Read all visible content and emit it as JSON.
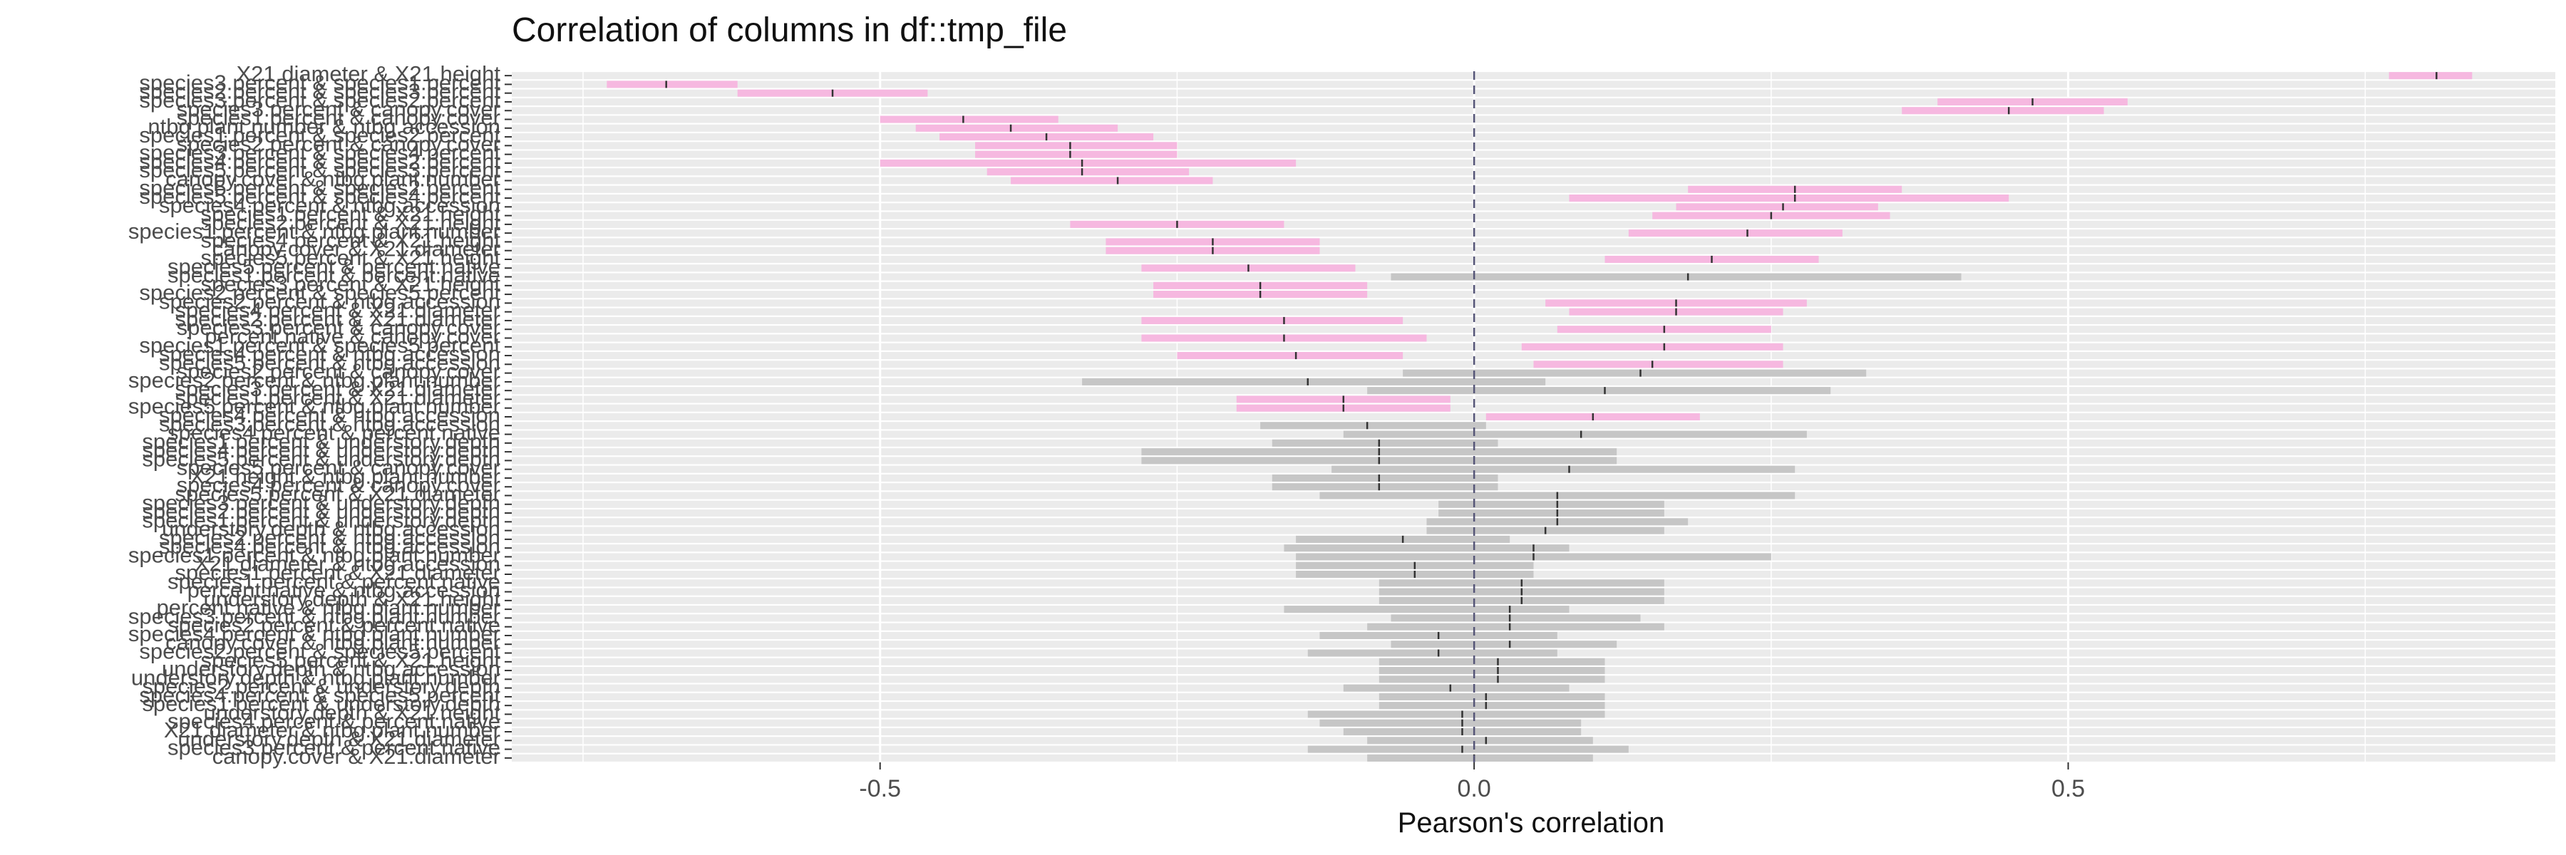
{
  "colors": {
    "panel_grid": "#ebebeb",
    "significant_bar": "#f6b8e0",
    "nonsignificant_bar": "#c6c6c6",
    "estimate_tick": "#333333",
    "zero_line": "#555577",
    "text": "#222222",
    "axis_text": "#4d4d4d"
  },
  "chart_data": {
    "type": "bar",
    "orientation": "horizontal",
    "title": "Correlation of columns in df::tmp_file",
    "xlabel": "Pearson's correlation",
    "ylabel": "",
    "xlim": [
      -0.81,
      0.91
    ],
    "xticks": [
      -0.5,
      0,
      0.5
    ],
    "xtick_labels": [
      "-0.5",
      "0.0",
      "0.5"
    ],
    "grid": true,
    "legend": "none",
    "bars": [
      {
        "label": "X21.diameter & X21.height",
        "r": 0.81,
        "lo": 0.77,
        "hi": 0.84,
        "sig": true
      },
      {
        "label": "species3.percent & species1.percent",
        "r": -0.68,
        "lo": -0.73,
        "hi": -0.62,
        "sig": true
      },
      {
        "label": "species2.percent & species3.percent",
        "r": -0.54,
        "lo": -0.62,
        "hi": -0.46,
        "sig": true
      },
      {
        "label": "species3.percent & species2.percent",
        "r": 0.47,
        "lo": 0.39,
        "hi": 0.55,
        "sig": true
      },
      {
        "label": "species3.percent & canopy.cover",
        "r": 0.45,
        "lo": 0.36,
        "hi": 0.53,
        "sig": true
      },
      {
        "label": "species1.percent & canopy.cover",
        "r": -0.43,
        "lo": -0.5,
        "hi": -0.35,
        "sig": true
      },
      {
        "label": "ntbg.plant.number & ntbg.accession",
        "r": -0.39,
        "lo": -0.47,
        "hi": -0.3,
        "sig": true
      },
      {
        "label": "species1.percent & species2.percent",
        "r": -0.36,
        "lo": -0.45,
        "hi": -0.27,
        "sig": true
      },
      {
        "label": "species2.percent & canopy.cover",
        "r": -0.34,
        "lo": -0.42,
        "hi": -0.25,
        "sig": true
      },
      {
        "label": "species3.percent & species4.percent",
        "r": -0.34,
        "lo": -0.42,
        "hi": -0.25,
        "sig": true
      },
      {
        "label": "species4.percent & species2.percent",
        "r": -0.33,
        "lo": -0.5,
        "hi": -0.15,
        "sig": true
      },
      {
        "label": "species5.percent & species3.percent",
        "r": -0.33,
        "lo": -0.41,
        "hi": -0.24,
        "sig": true
      },
      {
        "label": "canopy.cover & ntbg.plant.number",
        "r": -0.3,
        "lo": -0.39,
        "hi": -0.22,
        "sig": true
      },
      {
        "label": "species5.percent & species2.percent",
        "r": 0.27,
        "lo": 0.18,
        "hi": 0.36,
        "sig": true
      },
      {
        "label": "species5.percent & species4.percent",
        "r": 0.27,
        "lo": 0.08,
        "hi": 0.45,
        "sig": true
      },
      {
        "label": "species4.percent & ntbg.accession",
        "r": 0.26,
        "lo": 0.17,
        "hi": 0.34,
        "sig": true
      },
      {
        "label": "species1.percent & X21.height",
        "r": 0.25,
        "lo": 0.15,
        "hi": 0.35,
        "sig": true
      },
      {
        "label": "species2.percent & X21.height",
        "r": -0.25,
        "lo": -0.34,
        "hi": -0.16,
        "sig": true
      },
      {
        "label": "species1.percent & ntbg.plant.number",
        "r": 0.23,
        "lo": 0.13,
        "hi": 0.31,
        "sig": true
      },
      {
        "label": "species4.percent & X21.height",
        "r": -0.22,
        "lo": -0.31,
        "hi": -0.13,
        "sig": true
      },
      {
        "label": "canopy.cover & X21.diameter",
        "r": -0.22,
        "lo": -0.31,
        "hi": -0.13,
        "sig": true
      },
      {
        "label": "species5.percent & X21.height",
        "r": 0.2,
        "lo": 0.11,
        "hi": 0.29,
        "sig": true
      },
      {
        "label": "species5.percent & percent.native",
        "r": -0.19,
        "lo": -0.28,
        "hi": -0.1,
        "sig": true
      },
      {
        "label": "species1.percent & percent.native",
        "r": 0.18,
        "lo": -0.07,
        "hi": 0.41,
        "sig": false
      },
      {
        "label": "species3.percent & X21.height",
        "r": -0.18,
        "lo": -0.27,
        "hi": -0.09,
        "sig": true
      },
      {
        "label": "species2.percent & species5.percent",
        "r": -0.18,
        "lo": -0.27,
        "hi": -0.09,
        "sig": true
      },
      {
        "label": "species2.percent & ntbg.accession",
        "r": 0.17,
        "lo": 0.06,
        "hi": 0.28,
        "sig": true
      },
      {
        "label": "species4.percent & X21.diameter",
        "r": 0.17,
        "lo": 0.08,
        "hi": 0.26,
        "sig": true
      },
      {
        "label": "species2.percent & X21.diameter",
        "r": -0.16,
        "lo": -0.28,
        "hi": -0.06,
        "sig": true
      },
      {
        "label": "species3.percent & canopy.cover",
        "r": 0.16,
        "lo": 0.07,
        "hi": 0.25,
        "sig": true
      },
      {
        "label": "percent.native & canopy.cover",
        "r": -0.16,
        "lo": -0.28,
        "hi": -0.04,
        "sig": true
      },
      {
        "label": "species1.percent & species5.percent",
        "r": 0.16,
        "lo": 0.04,
        "hi": 0.26,
        "sig": true
      },
      {
        "label": "species4.percent & ntbg.accession",
        "r": -0.15,
        "lo": -0.25,
        "hi": -0.06,
        "sig": true
      },
      {
        "label": "species5.percent & ntbg.accession",
        "r": 0.15,
        "lo": 0.05,
        "hi": 0.26,
        "sig": true
      },
      {
        "label": "species2.percent & canopy.cover",
        "r": 0.14,
        "lo": -0.06,
        "hi": 0.33,
        "sig": false
      },
      {
        "label": "species2.percent & ntbg.plant.number",
        "r": -0.14,
        "lo": -0.33,
        "hi": 0.06,
        "sig": false
      },
      {
        "label": "species3.percent & X21.diameter",
        "r": 0.11,
        "lo": -0.09,
        "hi": 0.3,
        "sig": false
      },
      {
        "label": "species1.percent & X21.diameter",
        "r": -0.11,
        "lo": -0.2,
        "hi": -0.02,
        "sig": true
      },
      {
        "label": "species5.percent & ntbg.plant.number",
        "r": -0.11,
        "lo": -0.2,
        "hi": -0.02,
        "sig": true
      },
      {
        "label": "species4.percent & ntbg.accession",
        "r": 0.1,
        "lo": 0.01,
        "hi": 0.19,
        "sig": true
      },
      {
        "label": "species3.percent & ntbg.accession",
        "r": -0.09,
        "lo": -0.18,
        "hi": 0.01,
        "sig": false
      },
      {
        "label": "species4.percent & percent.native",
        "r": 0.09,
        "lo": -0.11,
        "hi": 0.28,
        "sig": false
      },
      {
        "label": "species1.percent & understory.depth",
        "r": -0.08,
        "lo": -0.17,
        "hi": 0.02,
        "sig": false
      },
      {
        "label": "species4.percent & understory.depth",
        "r": -0.08,
        "lo": -0.28,
        "hi": 0.12,
        "sig": false
      },
      {
        "label": "species5.percent & understory.depth",
        "r": -0.08,
        "lo": -0.28,
        "hi": 0.12,
        "sig": false
      },
      {
        "label": "species5.percent & canopy.cover",
        "r": 0.08,
        "lo": -0.12,
        "hi": 0.27,
        "sig": false
      },
      {
        "label": "X21.height & ntbg.plant.number",
        "r": -0.08,
        "lo": -0.17,
        "hi": 0.02,
        "sig": false
      },
      {
        "label": "species4.percent & canopy.cover",
        "r": -0.08,
        "lo": -0.17,
        "hi": 0.02,
        "sig": false
      },
      {
        "label": "species5.percent & X21.diameter",
        "r": 0.07,
        "lo": -0.13,
        "hi": 0.27,
        "sig": false
      },
      {
        "label": "species3.percent & understory.depth",
        "r": 0.07,
        "lo": -0.03,
        "hi": 0.16,
        "sig": false
      },
      {
        "label": "species2.percent & understory.depth",
        "r": 0.07,
        "lo": -0.03,
        "hi": 0.16,
        "sig": false
      },
      {
        "label": "species1.percent & understory.depth",
        "r": 0.07,
        "lo": -0.04,
        "hi": 0.18,
        "sig": false
      },
      {
        "label": "understory.depth & ntbg.accession",
        "r": 0.06,
        "lo": -0.04,
        "hi": 0.16,
        "sig": false
      },
      {
        "label": "species2.percent & ntbg.accession",
        "r": -0.06,
        "lo": -0.15,
        "hi": 0.03,
        "sig": false
      },
      {
        "label": "species4.percent & ntbg.accession",
        "r": 0.05,
        "lo": -0.16,
        "hi": 0.08,
        "sig": false
      },
      {
        "label": "species1.percent & ntbg.plant.number",
        "r": 0.05,
        "lo": -0.15,
        "hi": 0.25,
        "sig": false
      },
      {
        "label": "X21.diameter & ntbg.accession",
        "r": -0.05,
        "lo": -0.15,
        "hi": 0.05,
        "sig": false
      },
      {
        "label": "species1.percent & X21.diameter",
        "r": -0.05,
        "lo": -0.15,
        "hi": 0.05,
        "sig": false
      },
      {
        "label": "species1.percent & percent.native",
        "r": 0.04,
        "lo": -0.08,
        "hi": 0.16,
        "sig": false
      },
      {
        "label": "percent.native & ntbg.accession",
        "r": 0.04,
        "lo": -0.08,
        "hi": 0.16,
        "sig": false
      },
      {
        "label": "understory.depth & X21.height",
        "r": 0.04,
        "lo": -0.08,
        "hi": 0.16,
        "sig": false
      },
      {
        "label": "percent.native & ntbg.plant.number",
        "r": 0.03,
        "lo": -0.16,
        "hi": 0.08,
        "sig": false
      },
      {
        "label": "species3.percent & ntbg.plant.number",
        "r": 0.03,
        "lo": -0.07,
        "hi": 0.14,
        "sig": false
      },
      {
        "label": "species2.percent & percent.native",
        "r": 0.03,
        "lo": -0.09,
        "hi": 0.16,
        "sig": false
      },
      {
        "label": "species4.percent & ntbg.plant.number",
        "r": -0.03,
        "lo": -0.13,
        "hi": 0.07,
        "sig": false
      },
      {
        "label": "canopy.cover & ntbg.plant.number",
        "r": 0.03,
        "lo": -0.07,
        "hi": 0.12,
        "sig": false
      },
      {
        "label": "species2.percent & species5.percent",
        "r": -0.03,
        "lo": -0.14,
        "hi": 0.07,
        "sig": false
      },
      {
        "label": "species5.percent & X21.height",
        "r": 0.02,
        "lo": -0.08,
        "hi": 0.11,
        "sig": false
      },
      {
        "label": "understory.depth & ntbg.accession",
        "r": 0.02,
        "lo": -0.08,
        "hi": 0.11,
        "sig": false
      },
      {
        "label": "understory.depth & ntbg.plant.number",
        "r": 0.02,
        "lo": -0.08,
        "hi": 0.11,
        "sig": false
      },
      {
        "label": "species2.percent & understory.depth",
        "r": -0.02,
        "lo": -0.11,
        "hi": 0.08,
        "sig": false
      },
      {
        "label": "species4.percent & species5.percent",
        "r": 0.01,
        "lo": -0.08,
        "hi": 0.11,
        "sig": false
      },
      {
        "label": "species1.percent & understory.depth",
        "r": 0.01,
        "lo": -0.08,
        "hi": 0.11,
        "sig": false
      },
      {
        "label": "understory.depth & X21.height",
        "r": -0.01,
        "lo": -0.14,
        "hi": 0.11,
        "sig": false
      },
      {
        "label": "species4.percent & percent.native",
        "r": -0.01,
        "lo": -0.13,
        "hi": 0.09,
        "sig": false
      },
      {
        "label": "X21.diameter & ntbg.plant.number",
        "r": -0.01,
        "lo": -0.11,
        "hi": 0.09,
        "sig": false
      },
      {
        "label": "understory.depth & X21.diameter",
        "r": 0.01,
        "lo": -0.09,
        "hi": 0.1,
        "sig": false
      },
      {
        "label": "species3.percent & percent.native",
        "r": -0.01,
        "lo": -0.14,
        "hi": 0.13,
        "sig": false
      },
      {
        "label": "canopy.cover & X21.diameter",
        "r": 0.0,
        "lo": -0.09,
        "hi": 0.1,
        "sig": false
      }
    ]
  }
}
